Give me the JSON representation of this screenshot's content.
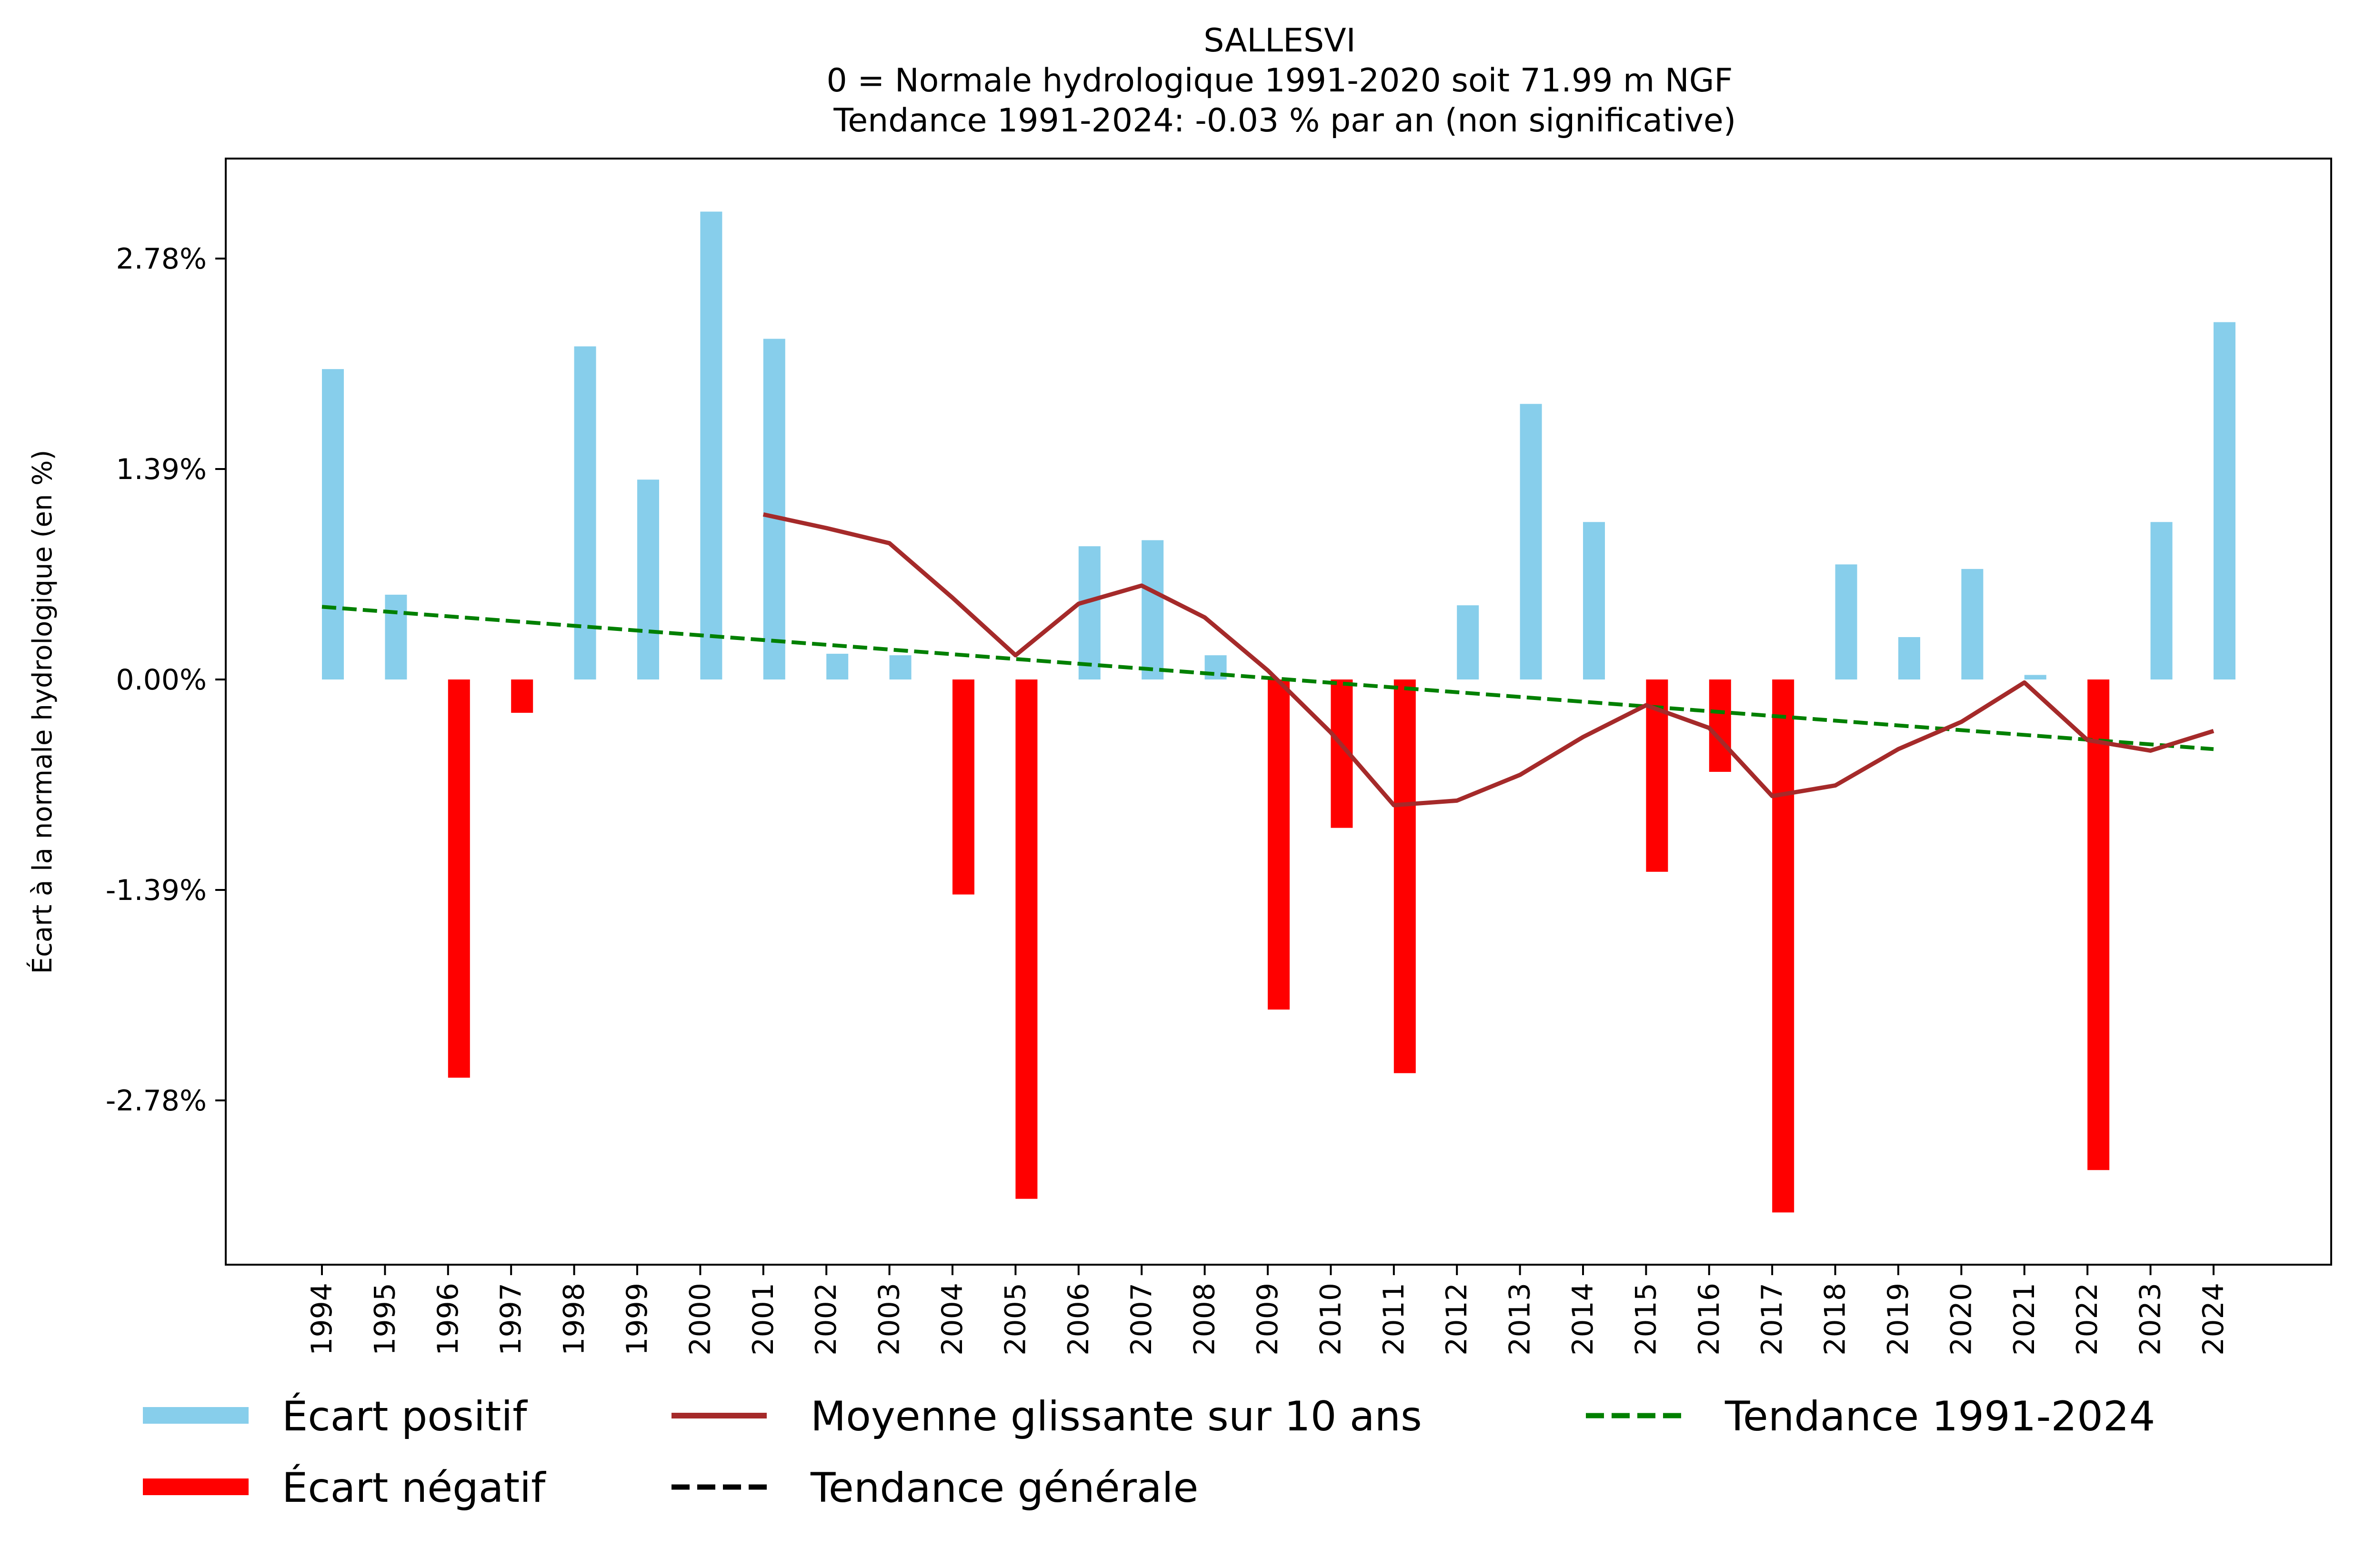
{
  "chart_data": {
    "type": "bar",
    "title_lines": [
      "SALLESVI",
      "0 = Normale hydrologique 1991-2020 soit 71.99 m NGF",
      " Tendance 1991-2024: -0.03 % par an (non significative)"
    ],
    "xlabel": "",
    "ylabel": "Écart à la normale hydrologique (en %)",
    "ylim": [
      -4.05,
      3.6
    ],
    "yticks": [
      2.78,
      1.39,
      0.0,
      -1.39,
      -2.78
    ],
    "ytick_labels": [
      "2.78%",
      "1.39%",
      "0.00%",
      "-1.39%",
      "-2.78%"
    ],
    "grid": false,
    "categories": [
      "1994",
      "1995",
      "1996",
      "1997",
      "1998",
      "1999",
      "2000",
      "2001",
      "2002",
      "2003",
      "2004",
      "2005",
      "2006",
      "2007",
      "2008",
      "2009",
      "2010",
      "2011",
      "2012",
      "2013",
      "2014",
      "2015",
      "2016",
      "2017",
      "2018",
      "2019",
      "2020",
      "2021",
      "2022",
      "2023",
      "2024"
    ],
    "series": [
      {
        "name": "Écart (bars)",
        "values": [
          2.05,
          0.56,
          -2.63,
          -0.22,
          2.2,
          1.32,
          3.09,
          2.25,
          0.17,
          0.16,
          -1.42,
          -3.43,
          0.88,
          0.92,
          0.16,
          -2.18,
          -0.98,
          -2.6,
          0.49,
          1.82,
          1.04,
          -1.27,
          -0.61,
          -3.52,
          0.76,
          0.28,
          0.73,
          0.03,
          -3.24,
          1.04,
          2.36
        ],
        "positive_color": "#87CEEB",
        "negative_color": "#FF0000"
      },
      {
        "name": "Moyenne glissante sur 10 ans",
        "type": "line",
        "color": "#A52A2A",
        "x": [
          "2001",
          "2002",
          "2003",
          "2004",
          "2005",
          "2006",
          "2007",
          "2008",
          "2009",
          "2010",
          "2011",
          "2012",
          "2013",
          "2014",
          "2015",
          "2016",
          "2017",
          "2018",
          "2019",
          "2020",
          "2021",
          "2022",
          "2023",
          "2024"
        ],
        "values": [
          1.09,
          1.0,
          0.9,
          0.54,
          0.16,
          0.5,
          0.62,
          0.41,
          0.06,
          -0.35,
          -0.83,
          -0.8,
          -0.63,
          -0.38,
          -0.17,
          -0.32,
          -0.77,
          -0.7,
          -0.46,
          -0.28,
          -0.02,
          -0.4,
          -0.47,
          -0.34
        ]
      },
      {
        "name": "Tendance 1991-2024",
        "type": "line",
        "style": "dashed",
        "color": "#008000",
        "x": [
          "1994",
          "2024"
        ],
        "values": [
          0.48,
          -0.46
        ]
      }
    ],
    "legend": {
      "placement": "bottom",
      "entries": [
        {
          "label": "Écart positif",
          "kind": "patch",
          "color": "#87CEEB"
        },
        {
          "label": "Moyenne glissante sur 10 ans",
          "kind": "line",
          "color": "#A52A2A"
        },
        {
          "label": "Tendance 1991-2024",
          "kind": "dashed",
          "color": "#008000"
        },
        {
          "label": "Écart négatif",
          "kind": "patch",
          "color": "#FF0000"
        },
        {
          "label": "Tendance générale",
          "kind": "dashed",
          "color": "#000000"
        }
      ]
    }
  }
}
